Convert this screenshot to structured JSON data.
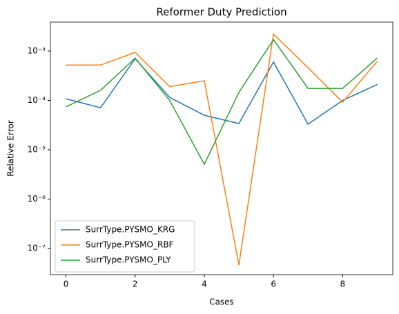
{
  "chart_data": {
    "type": "line",
    "title": "Reformer Duty Prediction",
    "x_label": "Cases",
    "y_label": "Relative Error",
    "x": [
      0,
      1,
      2,
      3,
      4,
      5,
      6,
      7,
      8,
      9
    ],
    "series": [
      {
        "name": "SurrType.PYSMO_KRG",
        "color": "#1f77b4",
        "values": [
          0.000108,
          7.1e-05,
          0.0007,
          0.000115,
          5e-05,
          3.4e-05,
          0.0006,
          3.3e-05,
          0.0001,
          0.00021
        ]
      },
      {
        "name": "SurrType.PYSMO_RBF",
        "color": "#ff7f0e",
        "values": [
          0.00052,
          0.00052,
          0.00094,
          0.00019,
          0.00025,
          4.6e-08,
          0.0022,
          0.00046,
          9.2e-05,
          0.00062
        ]
      },
      {
        "name": "SurrType.PYSMO_PLY",
        "color": "#2ca02c",
        "values": [
          7.4e-05,
          0.00016,
          0.00072,
          0.0001,
          5.1e-06,
          0.000145,
          0.0017,
          0.000175,
          0.000175,
          0.00072
        ]
      }
    ],
    "xlim": [
      -0.45,
      9.45
    ],
    "xticks": [
      0,
      2,
      4,
      6,
      8
    ],
    "ylim": [
      2.95e-08,
      0.00386
    ],
    "log_y": true,
    "yticks": [
      {
        "value": 1e-07,
        "label": "10⁻⁷"
      },
      {
        "value": 1e-06,
        "label": "10⁻⁶"
      },
      {
        "value": 1e-05,
        "label": "10⁻⁵"
      },
      {
        "value": 0.0001,
        "label": "10⁻⁴"
      },
      {
        "value": 0.001,
        "label": "10⁻³"
      }
    ],
    "legend": "lower left",
    "grid": false
  }
}
